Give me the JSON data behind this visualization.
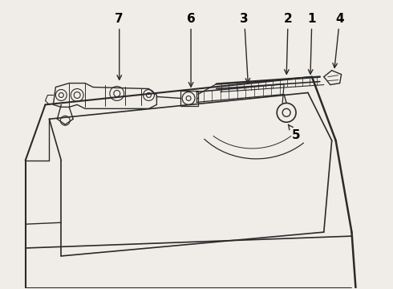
{
  "bg_color": "#f0ede8",
  "line_color": "#2a2a2a",
  "label_color": "#000000",
  "figsize": [
    4.9,
    3.6
  ],
  "dpi": 100
}
